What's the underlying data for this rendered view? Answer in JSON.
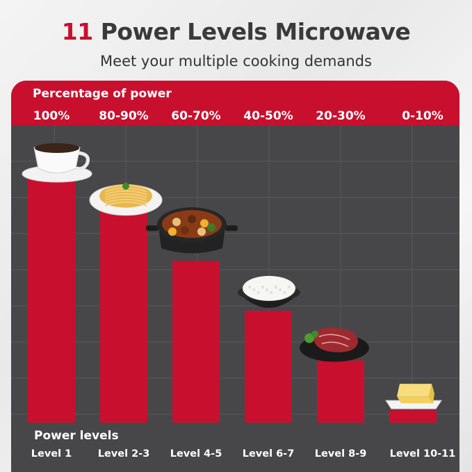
{
  "header": {
    "title_number": "11",
    "title_rest": "Power Levels Microwave",
    "subtitle": "Meet your multiple cooking demands"
  },
  "colors": {
    "accent": "#c8102e",
    "panel": "#47474a",
    "text": "#3a3a3a"
  },
  "chart_data": {
    "type": "bar",
    "title": "11 Power Levels Microwave",
    "subtitle": "Meet your multiple cooking demands",
    "top_axis_label": "Percentage of power",
    "xlabel": "Power levels",
    "categories": [
      "Level 1",
      "Level 2-3",
      "Level 4-5",
      "Level 6-7",
      "Level 8-9",
      "Level 10-11"
    ],
    "percentages": [
      "100%",
      "80-90%",
      "60-70%",
      "40-50%",
      "20-30%",
      "0-10%"
    ],
    "values": [
      100,
      85,
      65,
      45,
      25,
      5
    ],
    "icons": [
      "coffee-cup-icon",
      "spaghetti-plate-icon",
      "stew-pot-icon",
      "rice-bowl-icon",
      "steak-plate-icon",
      "butter-dish-icon"
    ],
    "grid": true,
    "legend": "none"
  }
}
